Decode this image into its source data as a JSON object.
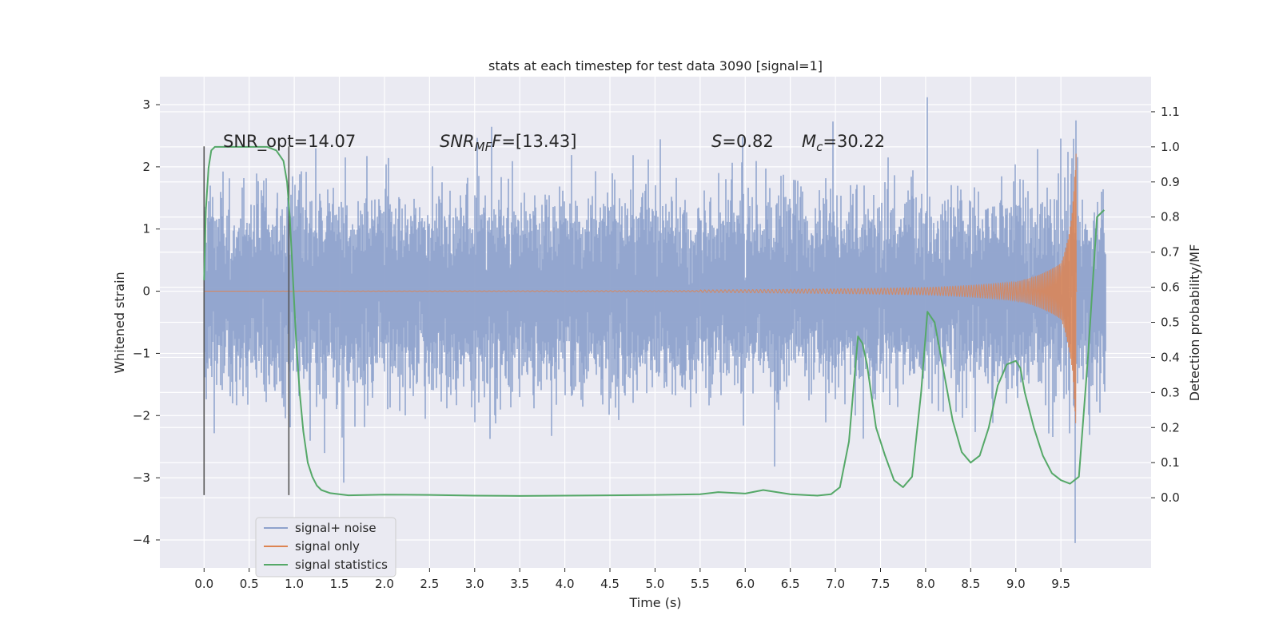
{
  "chart_data": {
    "type": "line",
    "title": "stats at each timestep for test data 3090 [signal=1]",
    "xlabel": "Time (s)",
    "ylabel_left": "Whitened strain",
    "ylabel_right": "Detection probability/MF",
    "xlim": [
      -0.49,
      10.5
    ],
    "ylim_left": [
      -4.45,
      3.45
    ],
    "ylim_right": [
      -0.2,
      1.2
    ],
    "x_ticks": [
      0.0,
      0.5,
      1.0,
      1.5,
      2.0,
      2.5,
      3.0,
      3.5,
      4.0,
      4.5,
      5.0,
      5.5,
      6.0,
      6.5,
      7.0,
      7.5,
      8.0,
      8.5,
      9.0,
      9.5
    ],
    "x_tick_labels": [
      "0.0",
      "0.5",
      "1.0",
      "1.5",
      "2.0",
      "2.5",
      "3.0",
      "3.5",
      "4.0",
      "4.5",
      "5.0",
      "5.5",
      "6.0",
      "6.5",
      "7.0",
      "7.5",
      "8.0",
      "8.5",
      "9.0",
      "9.5"
    ],
    "y_left_ticks": [
      -4,
      -3,
      -2,
      -1,
      0,
      1,
      2,
      3
    ],
    "y_left_tick_labels": [
      "−4",
      "−3",
      "−2",
      "−1",
      "0",
      "1",
      "2",
      "3"
    ],
    "y_right_ticks": [
      0.0,
      0.1,
      0.2,
      0.3,
      0.4,
      0.5,
      0.6,
      0.7,
      0.8,
      0.9,
      1.0,
      1.1
    ],
    "y_right_tick_labels": [
      "0.0",
      "0.1",
      "0.2",
      "0.3",
      "0.4",
      "0.5",
      "0.6",
      "0.7",
      "0.8",
      "0.9",
      "1.0",
      "1.1"
    ],
    "grid": true,
    "legend_position": "lower-left",
    "annotations": {
      "snr_opt": "SNR_opt=14.07",
      "snr_mf_sym": "SNR",
      "snr_mf_sub": "MF",
      "snr_mf_rest": "=[13.43]",
      "s_sym": "S",
      "s_rest": "=0.82",
      "mc_sym": "M",
      "mc_sub": "c",
      "mc_rest": "=30.22"
    },
    "vlines": [
      {
        "x": 0.0,
        "ymin": -3.28,
        "ymax": 2.33
      },
      {
        "x": 0.94,
        "ymin": -3.28,
        "ymax": 2.33
      }
    ],
    "series": [
      {
        "name": "signal+ noise",
        "color": "#8ea2cc",
        "axis": "left",
        "t_range": [
          0.0,
          10.0
        ],
        "band_sigma": 0.62,
        "notable_extremes": [
          {
            "x": 8.02,
            "y": 3.12
          },
          {
            "x": 9.66,
            "y": -4.05
          },
          {
            "x": 1.55,
            "y": -3.08
          },
          {
            "x": 6.33,
            "y": -2.82
          },
          {
            "x": 9.64,
            "y": 2.45
          }
        ]
      },
      {
        "name": "signal only",
        "color": "#dd8452",
        "axis": "left",
        "t_range": [
          0.0,
          9.68
        ],
        "description_points": [
          {
            "t": 5.5,
            "amp": 0.02
          },
          {
            "t": 8.0,
            "amp": 0.06
          },
          {
            "t": 9.0,
            "amp": 0.15
          },
          {
            "t": 9.5,
            "amp": 0.45
          },
          {
            "t": 9.62,
            "amp": 1.2
          },
          {
            "t": 9.67,
            "amp": 2.35
          }
        ]
      },
      {
        "name": "signal statistics",
        "color": "#55a868",
        "axis": "right",
        "x": [
          0.0,
          0.02,
          0.05,
          0.08,
          0.12,
          0.2,
          0.3,
          0.5,
          0.7,
          0.8,
          0.88,
          0.92,
          0.95,
          0.98,
          1.02,
          1.06,
          1.1,
          1.15,
          1.2,
          1.25,
          1.3,
          1.4,
          1.6,
          2.0,
          2.5,
          3.0,
          3.5,
          4.0,
          4.5,
          5.0,
          5.5,
          5.7,
          6.0,
          6.2,
          6.5,
          6.8,
          6.95,
          7.05,
          7.15,
          7.25,
          7.3,
          7.35,
          7.45,
          7.55,
          7.65,
          7.75,
          7.85,
          7.95,
          8.02,
          8.1,
          8.2,
          8.3,
          8.4,
          8.5,
          8.6,
          8.7,
          8.8,
          8.9,
          9.0,
          9.05,
          9.1,
          9.2,
          9.3,
          9.4,
          9.5,
          9.6,
          9.7,
          9.8,
          9.9,
          9.98
        ],
        "y": [
          0.62,
          0.82,
          0.94,
          0.99,
          1.0,
          1.0,
          1.0,
          1.0,
          1.0,
          0.99,
          0.96,
          0.9,
          0.8,
          0.65,
          0.45,
          0.3,
          0.19,
          0.1,
          0.06,
          0.035,
          0.022,
          0.013,
          0.007,
          0.009,
          0.008,
          0.006,
          0.005,
          0.006,
          0.007,
          0.008,
          0.01,
          0.016,
          0.012,
          0.022,
          0.01,
          0.006,
          0.01,
          0.03,
          0.16,
          0.46,
          0.44,
          0.38,
          0.2,
          0.12,
          0.05,
          0.03,
          0.06,
          0.3,
          0.53,
          0.5,
          0.36,
          0.22,
          0.13,
          0.1,
          0.12,
          0.2,
          0.32,
          0.38,
          0.39,
          0.37,
          0.3,
          0.2,
          0.12,
          0.07,
          0.05,
          0.04,
          0.06,
          0.4,
          0.8,
          0.82
        ]
      }
    ]
  }
}
